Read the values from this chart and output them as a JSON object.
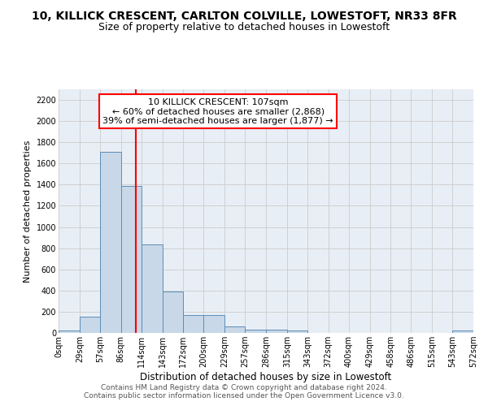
{
  "title1": "10, KILLICK CRESCENT, CARLTON COLVILLE, LOWESTOFT, NR33 8FR",
  "title2": "Size of property relative to detached houses in Lowestoft",
  "xlabel": "Distribution of detached houses by size in Lowestoft",
  "ylabel": "Number of detached properties",
  "bar_values": [
    20,
    155,
    1710,
    1390,
    835,
    390,
    165,
    165,
    65,
    30,
    30,
    20,
    0,
    0,
    0,
    0,
    0,
    0,
    0,
    20
  ],
  "bar_edges": [
    0,
    29,
    57,
    86,
    114,
    143,
    172,
    200,
    229,
    257,
    286,
    315,
    343,
    372,
    400,
    429,
    458,
    486,
    515,
    543,
    572
  ],
  "tick_labels": [
    "0sqm",
    "29sqm",
    "57sqm",
    "86sqm",
    "114sqm",
    "143sqm",
    "172sqm",
    "200sqm",
    "229sqm",
    "257sqm",
    "286sqm",
    "315sqm",
    "343sqm",
    "372sqm",
    "400sqm",
    "429sqm",
    "458sqm",
    "486sqm",
    "515sqm",
    "543sqm",
    "572sqm"
  ],
  "bar_color": "#c8d8e8",
  "bar_edgecolor": "#5b8db8",
  "grid_color": "#cccccc",
  "bg_color": "#e8eef5",
  "vline_x": 107,
  "vline_color": "red",
  "annotation_text": "10 KILLICK CRESCENT: 107sqm\n← 60% of detached houses are smaller (2,868)\n39% of semi-detached houses are larger (1,877) →",
  "annotation_box_color": "white",
  "annotation_box_edgecolor": "red",
  "ylim": [
    0,
    2300
  ],
  "yticks": [
    0,
    200,
    400,
    600,
    800,
    1000,
    1200,
    1400,
    1600,
    1800,
    2000,
    2200
  ],
  "footer_text": "Contains HM Land Registry data © Crown copyright and database right 2024.\nContains public sector information licensed under the Open Government Licence v3.0.",
  "title1_fontsize": 10,
  "title2_fontsize": 9,
  "xlabel_fontsize": 8.5,
  "ylabel_fontsize": 8,
  "tick_fontsize": 7,
  "annotation_fontsize": 8,
  "footer_fontsize": 6.5
}
